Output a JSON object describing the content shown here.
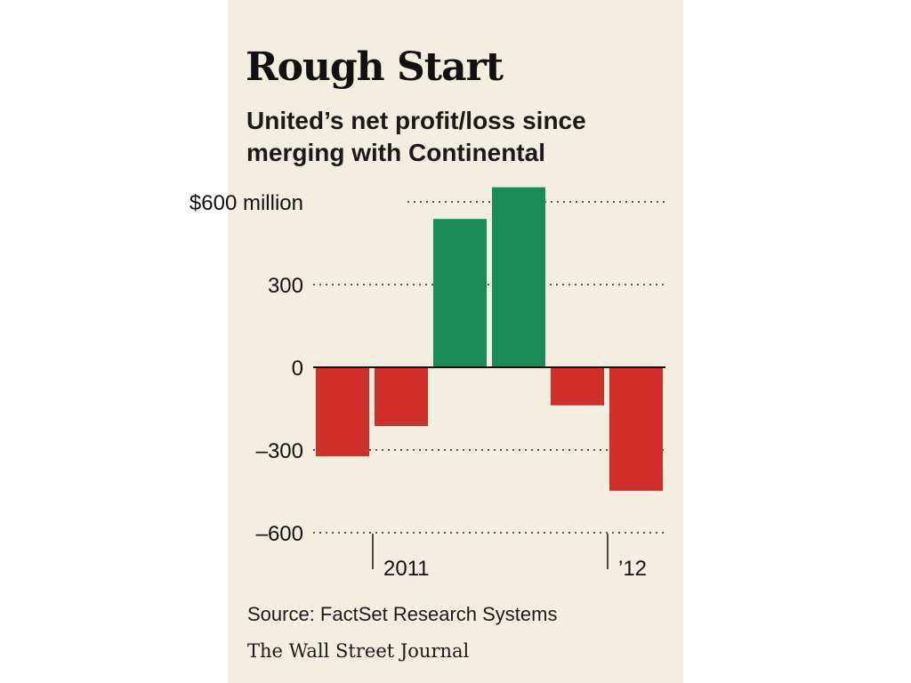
{
  "chart_data": {
    "type": "bar",
    "title": "Rough Start",
    "subtitle_lines": [
      "United’s net profit/loss since",
      "merging with Continental"
    ],
    "categories": [
      "",
      "",
      "",
      "",
      "",
      ""
    ],
    "values": [
      -323,
      -213,
      538,
      653,
      -138,
      -448
    ],
    "ylim": [
      -600,
      700
    ],
    "yticks": [
      600,
      300,
      0,
      -300,
      -600
    ],
    "ytick_labels": [
      "$600 million",
      "300",
      "0",
      "–300",
      "–600"
    ],
    "x_period_labels": [
      {
        "label": "2011",
        "start_index": 1
      },
      {
        "label": "’12",
        "start_index": 5
      }
    ],
    "colors": {
      "positive": "#1a8a57",
      "negative": "#cf2e2a",
      "background": "#f4eee1",
      "grid": "#555555"
    },
    "grid": "dotted-horizontal",
    "source": "Source: FactSet Research Systems",
    "credit": "The Wall Street Journal"
  }
}
